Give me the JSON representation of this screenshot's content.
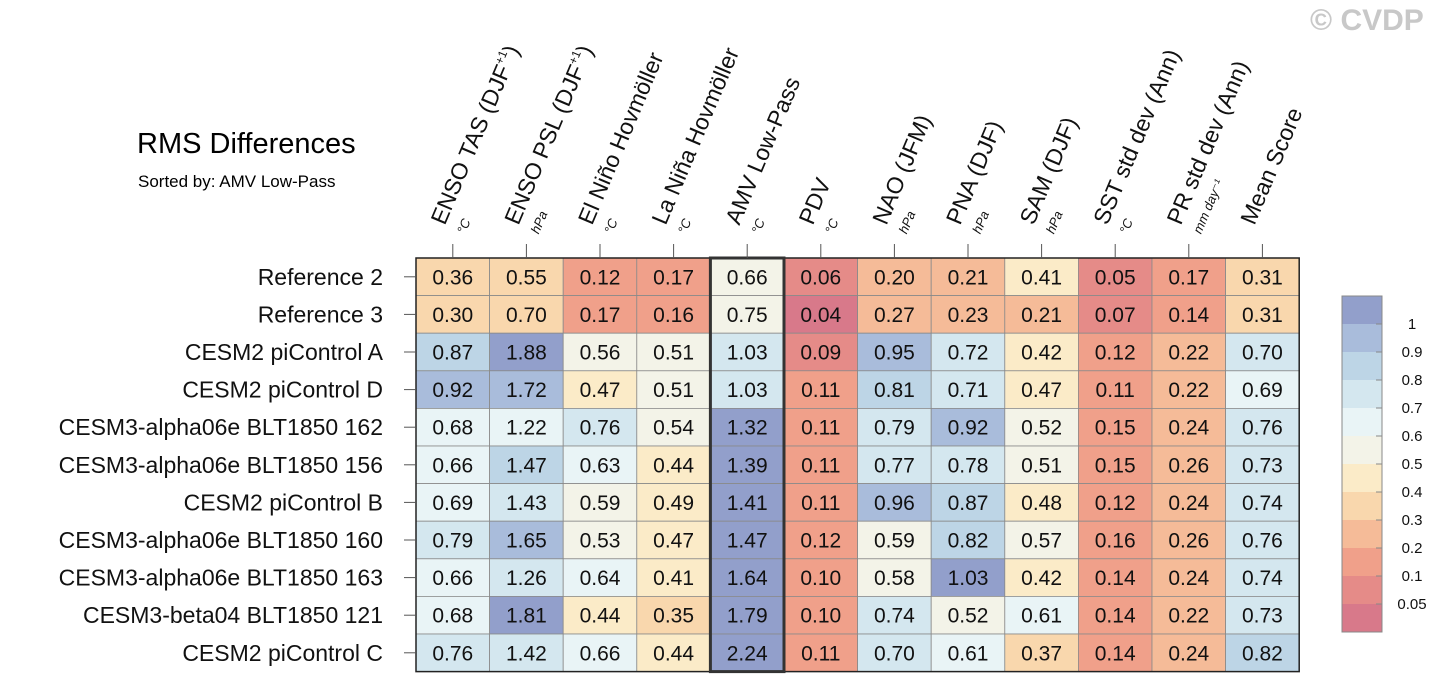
{
  "watermark": "© CVDP",
  "chart_data": {
    "type": "heatmap",
    "title": "RMS Differences",
    "subtitle": "Sorted by: AMV Low-Pass",
    "columns": [
      {
        "label": "ENSO TAS (DJF",
        "sup": "+1",
        "tail": ")",
        "unit": "°C"
      },
      {
        "label": "ENSO PSL (DJF",
        "sup": "+1",
        "tail": ")",
        "unit": "hPa"
      },
      {
        "label": "El Niño Hovmöller",
        "sup": "",
        "tail": "",
        "unit": "°C"
      },
      {
        "label": "La Niña Hovmöller",
        "sup": "",
        "tail": "",
        "unit": "°C"
      },
      {
        "label": "AMV Low-Pass",
        "sup": "",
        "tail": "",
        "unit": "°C"
      },
      {
        "label": "PDV",
        "sup": "",
        "tail": "",
        "unit": "°C"
      },
      {
        "label": "NAO (JFM)",
        "sup": "",
        "tail": "",
        "unit": "hPa"
      },
      {
        "label": "PNA (DJF)",
        "sup": "",
        "tail": "",
        "unit": "hPa"
      },
      {
        "label": "SAM (DJF)",
        "sup": "",
        "tail": "",
        "unit": "hPa"
      },
      {
        "label": "SST std dev (Ann)",
        "sup": "",
        "tail": "",
        "unit": "°C"
      },
      {
        "label": "PR std dev (Ann)",
        "sup": "",
        "tail": "",
        "unit": "mm day⁻¹"
      },
      {
        "label": "Mean Score",
        "sup": "",
        "tail": "",
        "unit": ""
      }
    ],
    "rows": [
      "Reference 2",
      "Reference 3",
      "CESM2 piControl A",
      "CESM2 piControl D",
      "CESM3-alpha06e BLT1850 162",
      "CESM3-alpha06e BLT1850 156",
      "CESM2 piControl B",
      "CESM3-alpha06e BLT1850 160",
      "CESM3-alpha06e BLT1850 163",
      "CESM3-beta04 BLT1850 121",
      "CESM2 piControl C"
    ],
    "values": [
      [
        0.36,
        0.55,
        0.12,
        0.17,
        0.66,
        0.06,
        0.2,
        0.21,
        0.41,
        0.05,
        0.17,
        0.31
      ],
      [
        0.3,
        0.7,
        0.17,
        0.16,
        0.75,
        0.04,
        0.27,
        0.23,
        0.21,
        0.07,
        0.14,
        0.31
      ],
      [
        0.87,
        1.88,
        0.56,
        0.51,
        1.03,
        0.09,
        0.95,
        0.72,
        0.42,
        0.12,
        0.22,
        0.7
      ],
      [
        0.92,
        1.72,
        0.47,
        0.51,
        1.03,
        0.11,
        0.81,
        0.71,
        0.47,
        0.11,
        0.22,
        0.69
      ],
      [
        0.68,
        1.22,
        0.76,
        0.54,
        1.32,
        0.11,
        0.79,
        0.92,
        0.52,
        0.15,
        0.24,
        0.76
      ],
      [
        0.66,
        1.47,
        0.63,
        0.44,
        1.39,
        0.11,
        0.77,
        0.78,
        0.51,
        0.15,
        0.26,
        0.73
      ],
      [
        0.69,
        1.43,
        0.59,
        0.49,
        1.41,
        0.11,
        0.96,
        0.87,
        0.48,
        0.12,
        0.24,
        0.74
      ],
      [
        0.79,
        1.65,
        0.53,
        0.47,
        1.47,
        0.12,
        0.59,
        0.82,
        0.57,
        0.16,
        0.26,
        0.76
      ],
      [
        0.66,
        1.26,
        0.64,
        0.41,
        1.64,
        0.1,
        0.58,
        1.03,
        0.42,
        0.14,
        0.24,
        0.74
      ],
      [
        0.68,
        1.81,
        0.44,
        0.35,
        1.79,
        0.1,
        0.74,
        0.52,
        0.61,
        0.14,
        0.22,
        0.73
      ],
      [
        0.76,
        1.42,
        0.66,
        0.44,
        2.24,
        0.11,
        0.7,
        0.61,
        0.37,
        0.14,
        0.24,
        0.82
      ]
    ],
    "highlighted_column": "AMV Low-Pass",
    "colorbar": {
      "tick_labels": [
        "1",
        "0.9",
        "0.8",
        "0.7",
        "0.6",
        "0.5",
        "0.4",
        "0.3",
        "0.2",
        "0.1",
        "0.05"
      ],
      "colors": [
        "#929fcb",
        "#a9bcdb",
        "#bdd5e6",
        "#d4e7ef",
        "#e9f4f6",
        "#f3f3e8",
        "#fbebc8",
        "#f9d7ad",
        "#f5bb98",
        "#f0a08a",
        "#e58b88",
        "#d8798a"
      ]
    }
  }
}
